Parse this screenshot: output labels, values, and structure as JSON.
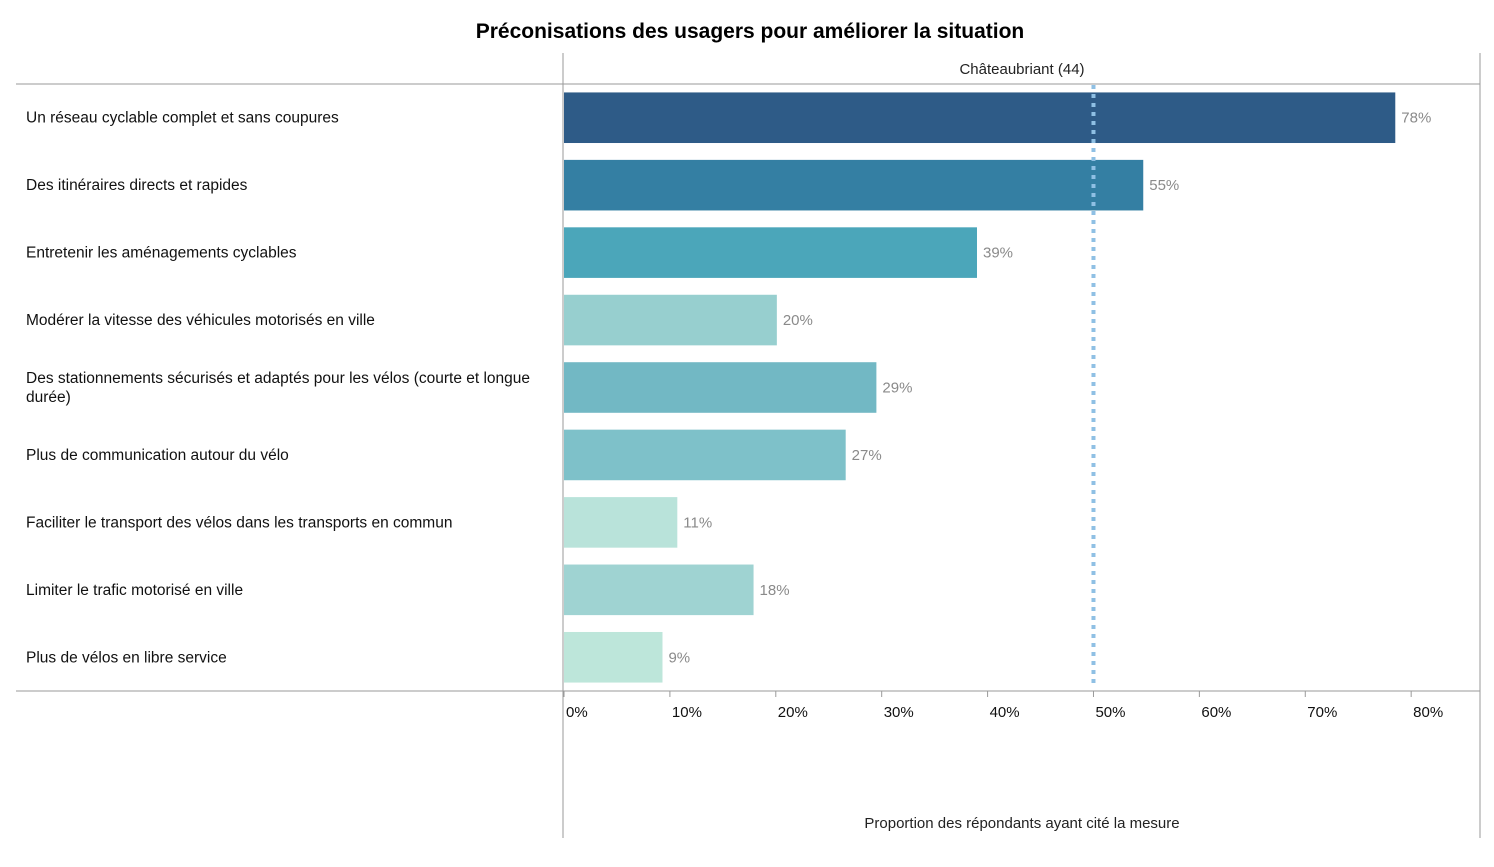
{
  "chart_data": {
    "type": "bar",
    "orientation": "horizontal",
    "title": "Préconisations des usagers pour améliorer la situation",
    "panel_label": "Châteaubriant (44)",
    "xlabel": "Proportion des répondants ayant cité la mesure",
    "xlim": [
      0,
      0.865
    ],
    "x_ticks": [
      "0%",
      "10%",
      "20%",
      "30%",
      "40%",
      "50%",
      "60%",
      "70%",
      "80%"
    ],
    "x_tick_values": [
      0,
      0.1,
      0.2,
      0.3,
      0.4,
      0.5,
      0.6,
      0.7,
      0.8
    ],
    "reference_line": 0.5,
    "reference_line_style": "dotted",
    "reference_line_color": "#8fc0e4",
    "categories": [
      [
        "Un réseau cyclable complet et sans coupures"
      ],
      [
        "Des itinéraires directs et rapides"
      ],
      [
        "Entretenir les aménagements cyclables"
      ],
      [
        "Modérer la vitesse des véhicules motorisés en ville"
      ],
      [
        "Des stationnements sécurisés et adaptés pour les vélos (courte et longue",
        "durée)"
      ],
      [
        "Plus de communication autour du vélo"
      ],
      [
        "Faciliter le transport des vélos dans les transports en commun"
      ],
      [
        "Limiter le trafic motorisé en ville"
      ],
      [
        "Plus de vélos en libre service"
      ]
    ],
    "values": [
      0.785,
      0.547,
      0.39,
      0.201,
      0.295,
      0.266,
      0.107,
      0.179,
      0.093
    ],
    "value_labels": [
      "78%",
      "55%",
      "39%",
      "20%",
      "29%",
      "27%",
      "11%",
      "18%",
      "9%"
    ],
    "colors": [
      "#2e5b87",
      "#347fa3",
      "#4ba6ba",
      "#97cfcf",
      "#72b8c4",
      "#7ec1c9",
      "#b9e3da",
      "#9fd3d2",
      "#bde6da"
    ],
    "grid": false,
    "legend": "none"
  }
}
